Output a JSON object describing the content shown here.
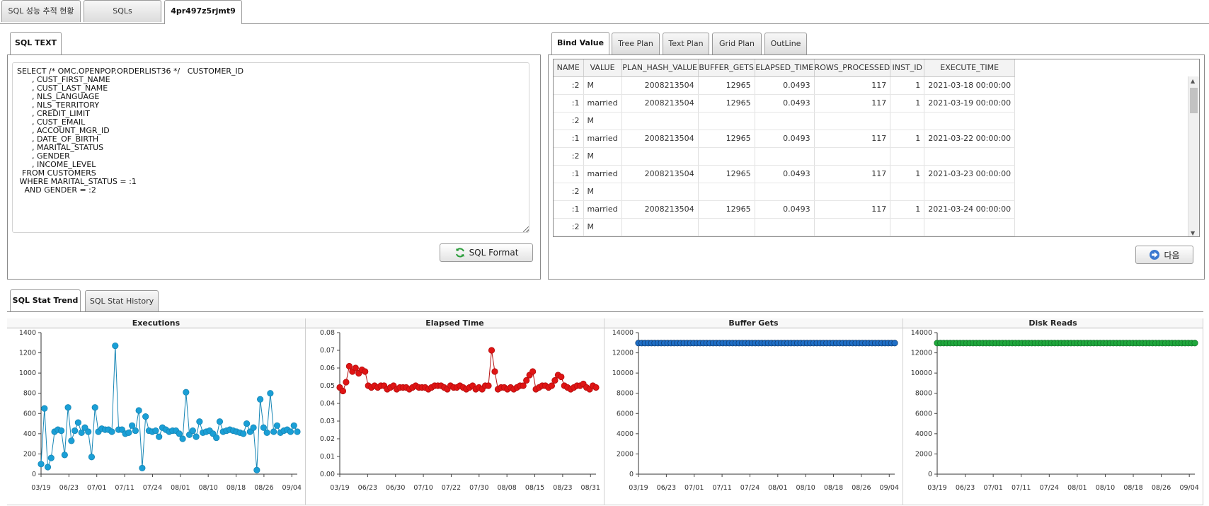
{
  "top_tabs": [
    "SQL 성능 추적 현황",
    "SQLs",
    "4pr497z5rjmt9"
  ],
  "sql_panel": {
    "tab": "SQL TEXT",
    "sql_text": "SELECT /* OMC.OPENPOP.ORDERLIST36 */   CUSTOMER_ID\n      , CUST_FIRST_NAME\n      , CUST_LAST_NAME\n      , NLS_LANGUAGE\n      , NLS_TERRITORY\n      , CREDIT_LIMIT\n      , CUST_EMAIL\n      , ACCOUNT_MGR_ID\n      , DATE_OF_BIRTH\n      , MARITAL_STATUS\n      , GENDER\n      , INCOME_LEVEL\n  FROM CUSTOMERS\n WHERE MARITAL_STATUS = :1\n   AND GENDER = :2",
    "format_button": "SQL Format"
  },
  "bind_panel": {
    "tabs": [
      "Bind Value",
      "Tree Plan",
      "Text Plan",
      "Grid Plan",
      "OutLine"
    ],
    "columns": [
      "NAME",
      "VALUE",
      "PLAN_HASH_VALUE",
      "BUFFER_GETS",
      "ELAPSED_TIME",
      "ROWS_PROCESSED",
      "INST_ID",
      "EXECUTE_TIME"
    ],
    "rows": [
      [
        ":2",
        "M",
        "2008213504",
        "12965",
        "0.0493",
        "117",
        "1",
        "2021-03-18 00:00:00"
      ],
      [
        ":1",
        "married",
        "2008213504",
        "12965",
        "0.0493",
        "117",
        "1",
        "2021-03-19 00:00:00"
      ],
      [
        ":2",
        "M",
        "",
        "",
        "",
        "",
        "",
        ""
      ],
      [
        ":1",
        "married",
        "2008213504",
        "12965",
        "0.0493",
        "117",
        "1",
        "2021-03-22 00:00:00"
      ],
      [
        ":2",
        "M",
        "",
        "",
        "",
        "",
        "",
        ""
      ],
      [
        ":1",
        "married",
        "2008213504",
        "12965",
        "0.0493",
        "117",
        "1",
        "2021-03-23 00:00:00"
      ],
      [
        ":2",
        "M",
        "",
        "",
        "",
        "",
        "",
        ""
      ],
      [
        ":1",
        "married",
        "2008213504",
        "12965",
        "0.0493",
        "117",
        "1",
        "2021-03-24 00:00:00"
      ],
      [
        ":2",
        "M",
        "",
        "",
        "",
        "",
        "",
        ""
      ]
    ],
    "next_button": "다음"
  },
  "stat_tabs": [
    "SQL Stat Trend",
    "SQL Stat History"
  ],
  "chart_data": [
    {
      "type": "line",
      "title": "Executions",
      "color": "#1a9fd6",
      "stroke": "#1786b5",
      "ylim": [
        0,
        1400
      ],
      "yticks": [
        "0",
        "200",
        "400",
        "600",
        "800",
        "1000",
        "1200",
        "1400"
      ],
      "xticks": [
        "03/19",
        "06/23",
        "07/01",
        "07/11",
        "07/24",
        "08/01",
        "08/10",
        "08/18",
        "08/26",
        "09/04"
      ],
      "values": [
        100,
        650,
        70,
        160,
        420,
        440,
        430,
        190,
        660,
        330,
        430,
        510,
        410,
        460,
        420,
        170,
        660,
        420,
        450,
        440,
        440,
        420,
        1270,
        440,
        440,
        400,
        410,
        480,
        430,
        630,
        60,
        570,
        430,
        420,
        430,
        370,
        460,
        440,
        420,
        430,
        430,
        400,
        350,
        810,
        390,
        430,
        370,
        520,
        410,
        420,
        430,
        400,
        360,
        520,
        420,
        430,
        440,
        430,
        420,
        410,
        400,
        500,
        420,
        460,
        40,
        740,
        460,
        410,
        800,
        420,
        480,
        410,
        430,
        440,
        420,
        480,
        420
      ]
    },
    {
      "type": "line",
      "title": "Elapsed Time",
      "color": "#e01414",
      "stroke": "#b50f0f",
      "ylim": [
        0,
        0.08
      ],
      "yticks": [
        "0.00",
        "0.01",
        "0.02",
        "0.03",
        "0.04",
        "0.05",
        "0.06",
        "0.07",
        "0.08"
      ],
      "xticks": [
        "03/19",
        "06/23",
        "06/30",
        "07/10",
        "07/22",
        "07/30",
        "08/08",
        "08/15",
        "08/23",
        "08/31"
      ],
      "values": [
        0.049,
        0.047,
        0.052,
        0.061,
        0.058,
        0.06,
        0.057,
        0.059,
        0.058,
        0.05,
        0.049,
        0.05,
        0.049,
        0.05,
        0.05,
        0.048,
        0.049,
        0.05,
        0.048,
        0.049,
        0.049,
        0.049,
        0.048,
        0.049,
        0.05,
        0.049,
        0.049,
        0.049,
        0.048,
        0.049,
        0.05,
        0.05,
        0.05,
        0.049,
        0.048,
        0.05,
        0.049,
        0.049,
        0.05,
        0.049,
        0.048,
        0.049,
        0.05,
        0.048,
        0.049,
        0.048,
        0.05,
        0.05,
        0.07,
        0.058,
        0.048,
        0.049,
        0.049,
        0.048,
        0.049,
        0.048,
        0.049,
        0.05,
        0.05,
        0.053,
        0.056,
        0.058,
        0.048,
        0.049,
        0.05,
        0.05,
        0.049,
        0.05,
        0.053,
        0.056,
        0.055,
        0.05,
        0.049,
        0.048,
        0.049,
        0.05,
        0.05,
        0.051,
        0.049,
        0.048,
        0.05,
        0.049
      ]
    },
    {
      "type": "line",
      "title": "Buffer Gets",
      "color": "#1f6fc7",
      "stroke": "#0f3d73",
      "ylim": [
        0,
        14000
      ],
      "yticks": [
        "0",
        "2000",
        "4000",
        "6000",
        "8000",
        "10000",
        "12000",
        "14000"
      ],
      "xticks": [
        "03/19",
        "06/23",
        "07/01",
        "07/11",
        "07/24",
        "08/01",
        "08/10",
        "08/18",
        "08/26",
        "09/04"
      ],
      "constant": 12965,
      "count": 80
    },
    {
      "type": "line",
      "title": "Disk Reads",
      "color": "#1fa83c",
      "stroke": "#13752a",
      "ylim": [
        0,
        14000
      ],
      "yticks": [
        "0",
        "2000",
        "4000",
        "6000",
        "8000",
        "10000",
        "12000",
        "14000"
      ],
      "xticks": [
        "03/19",
        "06/23",
        "07/01",
        "07/11",
        "07/24",
        "08/01",
        "08/10",
        "08/18",
        "08/26",
        "09/04"
      ],
      "constant": 12965,
      "count": 80
    }
  ]
}
